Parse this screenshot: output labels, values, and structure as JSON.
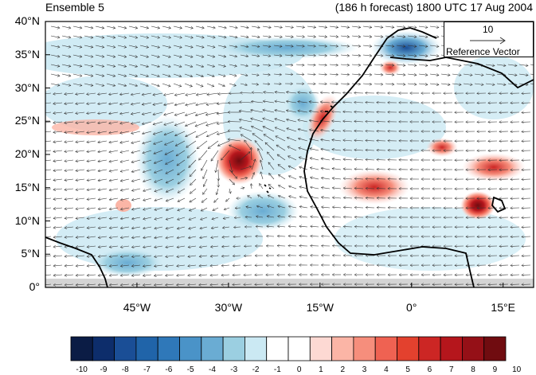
{
  "title_left": "Ensemble 5",
  "title_right": "(186 h forecast) 1800 UTC 17 Aug 2004",
  "lat_labels": [
    "40°N",
    "35°N",
    "30°N",
    "25°N",
    "20°N",
    "15°N",
    "10°N",
    "5°N",
    "0°"
  ],
  "lon_labels": [
    "45°W",
    "30°W",
    "15°W",
    "0°",
    "15°E"
  ],
  "reference_vector": {
    "magnitude": "10",
    "label": "Reference Vector"
  },
  "colorbar": {
    "labels": [
      "-10",
      "-9",
      "-8",
      "-7",
      "-6",
      "-5",
      "-4",
      "-3",
      "-2",
      "-1",
      "0",
      "1",
      "2",
      "3",
      "4",
      "5",
      "6",
      "7",
      "8",
      "9",
      "10"
    ],
    "colors": [
      "#0b1c45",
      "#0d2d6b",
      "#1a4e96",
      "#2064a9",
      "#2f78b9",
      "#4a93c8",
      "#6aacd3",
      "#9bcfe1",
      "#cbe9f3",
      "#ffffff",
      "#ffffff",
      "#fdd9d3",
      "#fbb5a6",
      "#f68e7c",
      "#ef6252",
      "#e3412e",
      "#cc2624",
      "#b5161c",
      "#951017",
      "#700c10"
    ]
  },
  "map": {
    "lon_range": [
      -60,
      20
    ],
    "lat_range": [
      0,
      40
    ],
    "features": [
      {
        "name": "cyclone",
        "lon": -28.5,
        "lat": 20,
        "sign": "positive",
        "intensity": 10
      },
      {
        "name": "sahara-high",
        "lon": -5,
        "lat": 15,
        "sign": "positive",
        "intensity": 6
      },
      {
        "name": "east-africa-high",
        "lon": 11,
        "lat": 13,
        "sign": "positive",
        "intensity": 8
      },
      {
        "name": "morocco-coast-high",
        "lon": -14,
        "lat": 27,
        "sign": "positive",
        "intensity": 6
      },
      {
        "name": "mediterranean-low",
        "lon": 0,
        "lat": 37,
        "sign": "negative",
        "intensity": 6
      }
    ]
  }
}
